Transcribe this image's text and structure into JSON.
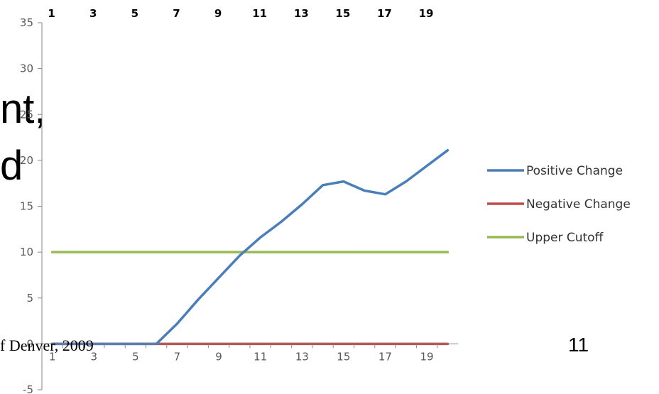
{
  "slide": {
    "fragment_1": "nt,",
    "fragment_2": "d",
    "footer": "f Denver, 2009",
    "page_number": "11"
  },
  "colors": {
    "positive": "#4A7EBB",
    "negative": "#BE4B48",
    "cutoff": "#98B954",
    "axis": "#868686"
  },
  "chart_data": {
    "type": "line",
    "title": "",
    "xlabel": "",
    "ylabel": "",
    "ylim": [
      -5,
      35
    ],
    "y_ticks": [
      "35",
      "30",
      "25",
      "20",
      "15",
      "10",
      "5",
      "0",
      "-5"
    ],
    "x_ticks_bottom": [
      "1",
      "3",
      "5",
      "7",
      "9",
      "11",
      "13",
      "15",
      "17",
      "19"
    ],
    "x_ticks_top": [
      "1",
      "3",
      "5",
      "7",
      "9",
      "11",
      "13",
      "15",
      "17",
      "19"
    ],
    "x": [
      1,
      2,
      3,
      4,
      5,
      6,
      7,
      8,
      9,
      10,
      11,
      12,
      13,
      14,
      15,
      16,
      17,
      18,
      19,
      20
    ],
    "grid": false,
    "legend": "right",
    "series": [
      {
        "name": "Positive Change",
        "color_key": "positive",
        "values": [
          0,
          0,
          0,
          0,
          0,
          0,
          2.2,
          4.8,
          7.2,
          9.6,
          11.6,
          13.3,
          15.2,
          17.3,
          17.7,
          16.7,
          16.3,
          17.7,
          19.4,
          21.1
        ]
      },
      {
        "name": "Negative Change",
        "color_key": "negative",
        "values": [
          0,
          0,
          0,
          0,
          0,
          0,
          0,
          0,
          0,
          0,
          0,
          0,
          0,
          0,
          0,
          0,
          0,
          0,
          0,
          0
        ]
      },
      {
        "name": "Upper Cutoff",
        "color_key": "cutoff",
        "values": [
          10,
          10,
          10,
          10,
          10,
          10,
          10,
          10,
          10,
          10,
          10,
          10,
          10,
          10,
          10,
          10,
          10,
          10,
          10,
          10
        ]
      }
    ]
  }
}
